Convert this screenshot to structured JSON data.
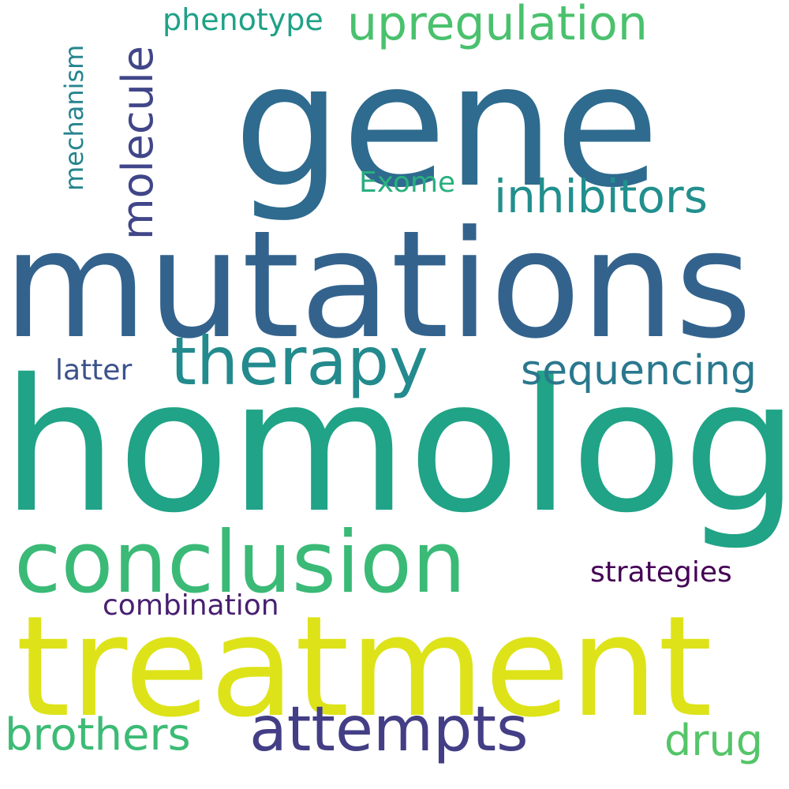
{
  "words": {
    "gene": {
      "text": "gene",
      "color": "#2e6b8e"
    },
    "mutations": {
      "text": "mutations",
      "color": "#33638d"
    },
    "homolog": {
      "text": "homolog",
      "color": "#20a386"
    },
    "treatment": {
      "text": "treatment",
      "color": "#dde318"
    },
    "conclusion": {
      "text": "conclusion",
      "color": "#3aba76"
    },
    "therapy": {
      "text": "therapy",
      "color": "#238a8d"
    },
    "attempts": {
      "text": "attempts",
      "color": "#433e85"
    },
    "upregulation": {
      "text": "upregulation",
      "color": "#4ac16d"
    },
    "inhibitors": {
      "text": "inhibitors",
      "color": "#218f8d"
    },
    "sequencing": {
      "text": "sequencing",
      "color": "#2a788e"
    },
    "molecule": {
      "text": "molecule",
      "color": "#404688"
    },
    "phenotype": {
      "text": "phenotype",
      "color": "#1fa187"
    },
    "mechanism": {
      "text": "mechanism",
      "color": "#25848e"
    },
    "exome": {
      "text": "Exome",
      "color": "#29af7f"
    },
    "latter": {
      "text": "latter",
      "color": "#3b528b"
    },
    "strategies": {
      "text": "strategies",
      "color": "#440154"
    },
    "combination": {
      "text": "combination",
      "color": "#481f70"
    },
    "brothers": {
      "text": "brothers",
      "color": "#3cbb75"
    },
    "drug": {
      "text": "drug",
      "color": "#54c568"
    }
  }
}
